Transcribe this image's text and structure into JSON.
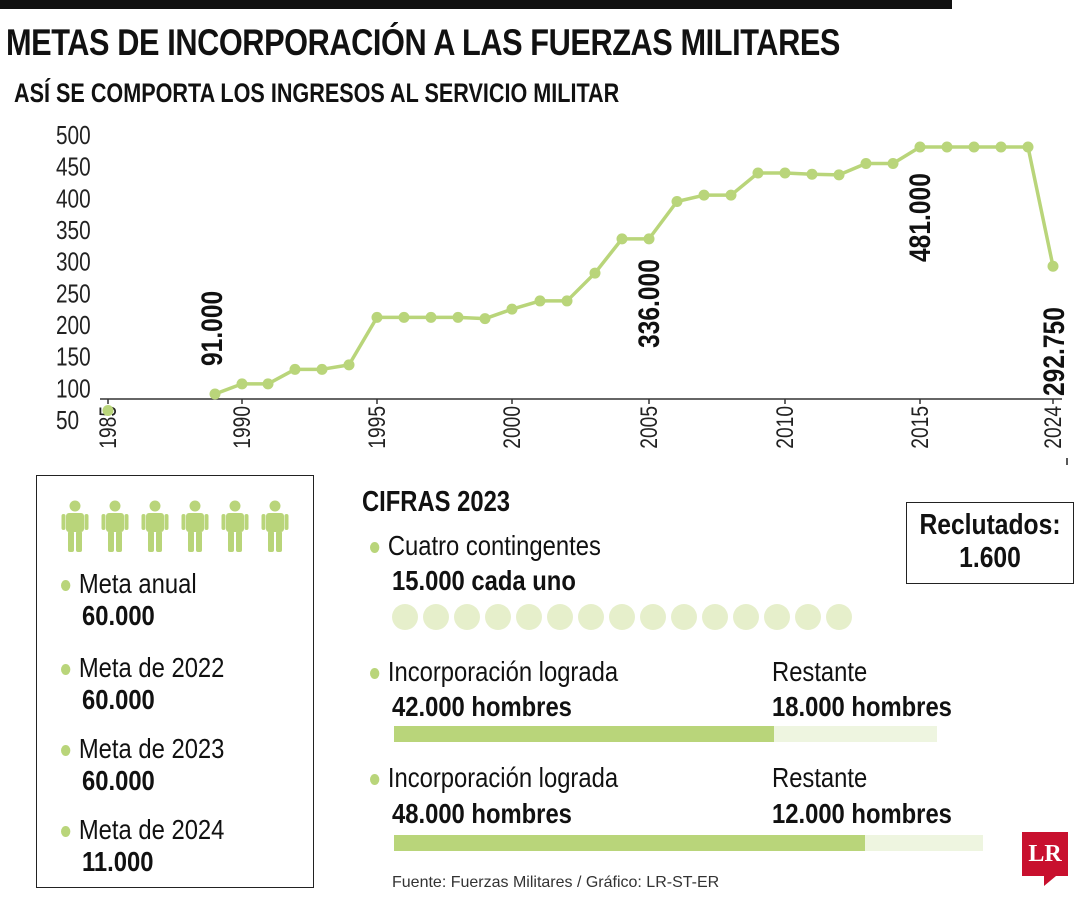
{
  "header": {
    "title": "METAS DE INCORPORACIÓN A LAS FUERZAS MILITARES",
    "subtitle": "ASÍ SE COMPORTA LOS INGRESOS AL SERVICIO MILITAR"
  },
  "colors": {
    "accent": "#b9d57a",
    "accent_light": "#e6efcb",
    "track": "#eef5e0",
    "text": "#111111",
    "logo": "#c8102e"
  },
  "chart_data": {
    "type": "line",
    "x_ticks": [
      "1985",
      "1990",
      "1995",
      "2000",
      "2005",
      "2010",
      "2015",
      "2024"
    ],
    "y_ticks": [
      50,
      100,
      150,
      200,
      250,
      300,
      350,
      400,
      450,
      500
    ],
    "ylim": [
      50,
      500
    ],
    "grid": false,
    "series": [
      {
        "color": "#b9d57a",
        "points": [
          {
            "x": 1985,
            "y": 65
          },
          {
            "x": 1989,
            "y": 91
          },
          {
            "x": 1990,
            "y": 107
          },
          {
            "x": 1991,
            "y": 107
          },
          {
            "x": 1992,
            "y": 130
          },
          {
            "x": 1993,
            "y": 130
          },
          {
            "x": 1994,
            "y": 137
          },
          {
            "x": 1995,
            "y": 212
          },
          {
            "x": 1996,
            "y": 212
          },
          {
            "x": 1997,
            "y": 212
          },
          {
            "x": 1998,
            "y": 212
          },
          {
            "x": 1999,
            "y": 210
          },
          {
            "x": 2000,
            "y": 225
          },
          {
            "x": 2001,
            "y": 238
          },
          {
            "x": 2002,
            "y": 238
          },
          {
            "x": 2003,
            "y": 282
          },
          {
            "x": 2004,
            "y": 336
          },
          {
            "x": 2005,
            "y": 336
          },
          {
            "x": 2006,
            "y": 395
          },
          {
            "x": 2007,
            "y": 405
          },
          {
            "x": 2008,
            "y": 405
          },
          {
            "x": 2009,
            "y": 440
          },
          {
            "x": 2010,
            "y": 440
          },
          {
            "x": 2011,
            "y": 438
          },
          {
            "x": 2012,
            "y": 437
          },
          {
            "x": 2013,
            "y": 455
          },
          {
            "x": 2014,
            "y": 455
          },
          {
            "x": 2015,
            "y": 481
          },
          {
            "x": 2016,
            "y": 481
          },
          {
            "x": 2017,
            "y": 481
          },
          {
            "x": 2018,
            "y": 481
          },
          {
            "x": 2019,
            "y": 481
          },
          {
            "x": 2020,
            "y": 292.75
          }
        ]
      }
    ],
    "annotations": [
      {
        "x": 1989,
        "y": 91,
        "text": "91.000"
      },
      {
        "x": 2005,
        "y": 336,
        "text": "336.000"
      },
      {
        "x": 2015,
        "y": 481,
        "text": "481.000"
      },
      {
        "x": 2020,
        "y": 292.75,
        "text": "292.750"
      }
    ]
  },
  "goals": {
    "people_icon": "person-icon",
    "people_count": 6,
    "items": [
      {
        "label": "Meta anual",
        "value": "60.000"
      },
      {
        "label": "Meta de 2022",
        "value": "60.000"
      },
      {
        "label": "Meta de 2023",
        "value": "60.000"
      },
      {
        "label": "Meta de 2024",
        "value": "11.000"
      }
    ]
  },
  "stats": {
    "heading": "CIFRAS 2023",
    "contingents": {
      "label": "Cuatro contingentes",
      "value": "15.000 cada uno",
      "dot_count": 15
    },
    "bars": [
      {
        "achieved_label": "Incorporación lograda",
        "achieved_value": "42.000 hombres",
        "remaining_label": "Restante",
        "remaining_value": "18.000 hombres",
        "fraction": 0.7
      },
      {
        "achieved_label": "Incorporación lograda",
        "achieved_value": "48.000 hombres",
        "remaining_label": "Restante",
        "remaining_value": "12.000 hombres",
        "fraction": 0.8
      }
    ]
  },
  "recruits": {
    "label": "Reclutados:",
    "value": "1.600"
  },
  "footer": {
    "source": "Fuente: Fuerzas Militares / Gráfico: LR-ST-ER",
    "logo": "LR"
  }
}
